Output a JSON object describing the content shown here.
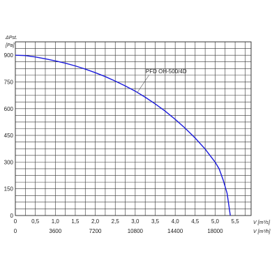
{
  "chart_data": {
    "type": "line",
    "title": "",
    "ylabel": "ΔPst.",
    "ylabel_unit": "[Pa]",
    "xlabel": "V [m³/s]",
    "xlabel_secondary": "V [m³/h]",
    "xlim": [
      0,
      5.9
    ],
    "ylim": [
      0,
      975
    ],
    "grid": true,
    "x_ticks": [
      "0",
      "0,5",
      "1,0",
      "1,5",
      "2,0",
      "2,5",
      "3,0",
      "3,5",
      "4,0",
      "4,5",
      "5,0",
      "5,5"
    ],
    "x_ticks_secondary": [
      "0",
      "3600",
      "7200",
      "10800",
      "14400",
      "18000"
    ],
    "y_ticks": [
      "0",
      "150",
      "300",
      "450",
      "600",
      "750",
      "900"
    ],
    "series": [
      {
        "name": "PFD OH-500/4D",
        "color": "#1a1adb",
        "x": [
          0,
          0.25,
          0.5,
          0.75,
          1.0,
          1.25,
          1.5,
          1.75,
          2.0,
          2.25,
          2.5,
          2.75,
          3.0,
          3.25,
          3.5,
          3.75,
          4.0,
          4.25,
          4.5,
          4.75,
          5.0,
          5.1,
          5.2,
          5.3,
          5.38
        ],
        "y": [
          900,
          898,
          890,
          880,
          868,
          855,
          840,
          822,
          802,
          780,
          755,
          728,
          698,
          664,
          627,
          586,
          540,
          490,
          435,
          373,
          300,
          262,
          200,
          125,
          0
        ]
      }
    ]
  }
}
